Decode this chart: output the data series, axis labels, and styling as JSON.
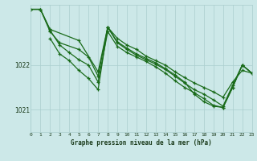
{
  "title": "Graphe pression niveau de la mer (hPa)",
  "background_color": "#cce8e8",
  "grid_color": "#aacece",
  "line_color": "#1a6b1a",
  "xmin": 0,
  "xmax": 23,
  "ymin": 1020.5,
  "ymax": 1023.35,
  "yticks": [
    1021,
    1022
  ],
  "series": [
    {
      "x": [
        0,
        1,
        2,
        5,
        7,
        8,
        9,
        10,
        11,
        12,
        13,
        14,
        15,
        16,
        17,
        18,
        19,
        20,
        21,
        22,
        23
      ],
      "y": [
        1023.25,
        1023.25,
        1022.8,
        1022.55,
        1021.85,
        1022.85,
        1022.6,
        1022.45,
        1022.35,
        1022.2,
        1022.1,
        1022.0,
        1021.85,
        1021.72,
        1021.6,
        1021.5,
        1021.4,
        1021.28,
        1021.62,
        1021.88,
        1021.82
      ]
    },
    {
      "x": [
        0,
        1,
        2,
        3,
        5,
        6,
        7,
        8,
        9,
        10,
        11,
        12,
        13,
        14,
        15,
        16,
        17,
        18,
        19,
        20,
        21,
        22,
        23
      ],
      "y": [
        1023.25,
        1023.25,
        1022.75,
        1022.5,
        1022.35,
        1022.18,
        1021.75,
        1022.85,
        1022.5,
        1022.35,
        1022.22,
        1022.12,
        1022.02,
        1021.9,
        1021.75,
        1021.6,
        1021.45,
        1021.35,
        1021.22,
        1021.08,
        1021.55,
        1022.0,
        1021.82
      ]
    },
    {
      "x": [
        2,
        3,
        4,
        5,
        6,
        7,
        8,
        9,
        10,
        11,
        12,
        13,
        14,
        15,
        16,
        17,
        18,
        19,
        20,
        21,
        22,
        23
      ],
      "y": [
        1022.6,
        1022.25,
        1022.1,
        1021.88,
        1021.7,
        1021.45,
        1022.85,
        1022.52,
        1022.38,
        1022.25,
        1022.15,
        1022.05,
        1021.92,
        1021.78,
        1021.62,
        1021.35,
        1021.18,
        1021.08,
        1021.05,
        1021.5,
        1022.0,
        1021.82
      ]
    },
    {
      "x": [
        0,
        1,
        2,
        3,
        4,
        5,
        6,
        7,
        8,
        9,
        10,
        11,
        12,
        13,
        14,
        15,
        16,
        17,
        18,
        19,
        20,
        21,
        22,
        23
      ],
      "y": [
        1023.25,
        1023.25,
        1022.78,
        1022.45,
        1022.28,
        1022.12,
        1022.0,
        1021.62,
        1022.75,
        1022.42,
        1022.28,
        1022.18,
        1022.08,
        1021.96,
        1021.82,
        1021.65,
        1021.5,
        1021.38,
        1021.25,
        1021.1,
        1021.05,
        1021.5,
        1022.0,
        1021.82
      ]
    }
  ]
}
